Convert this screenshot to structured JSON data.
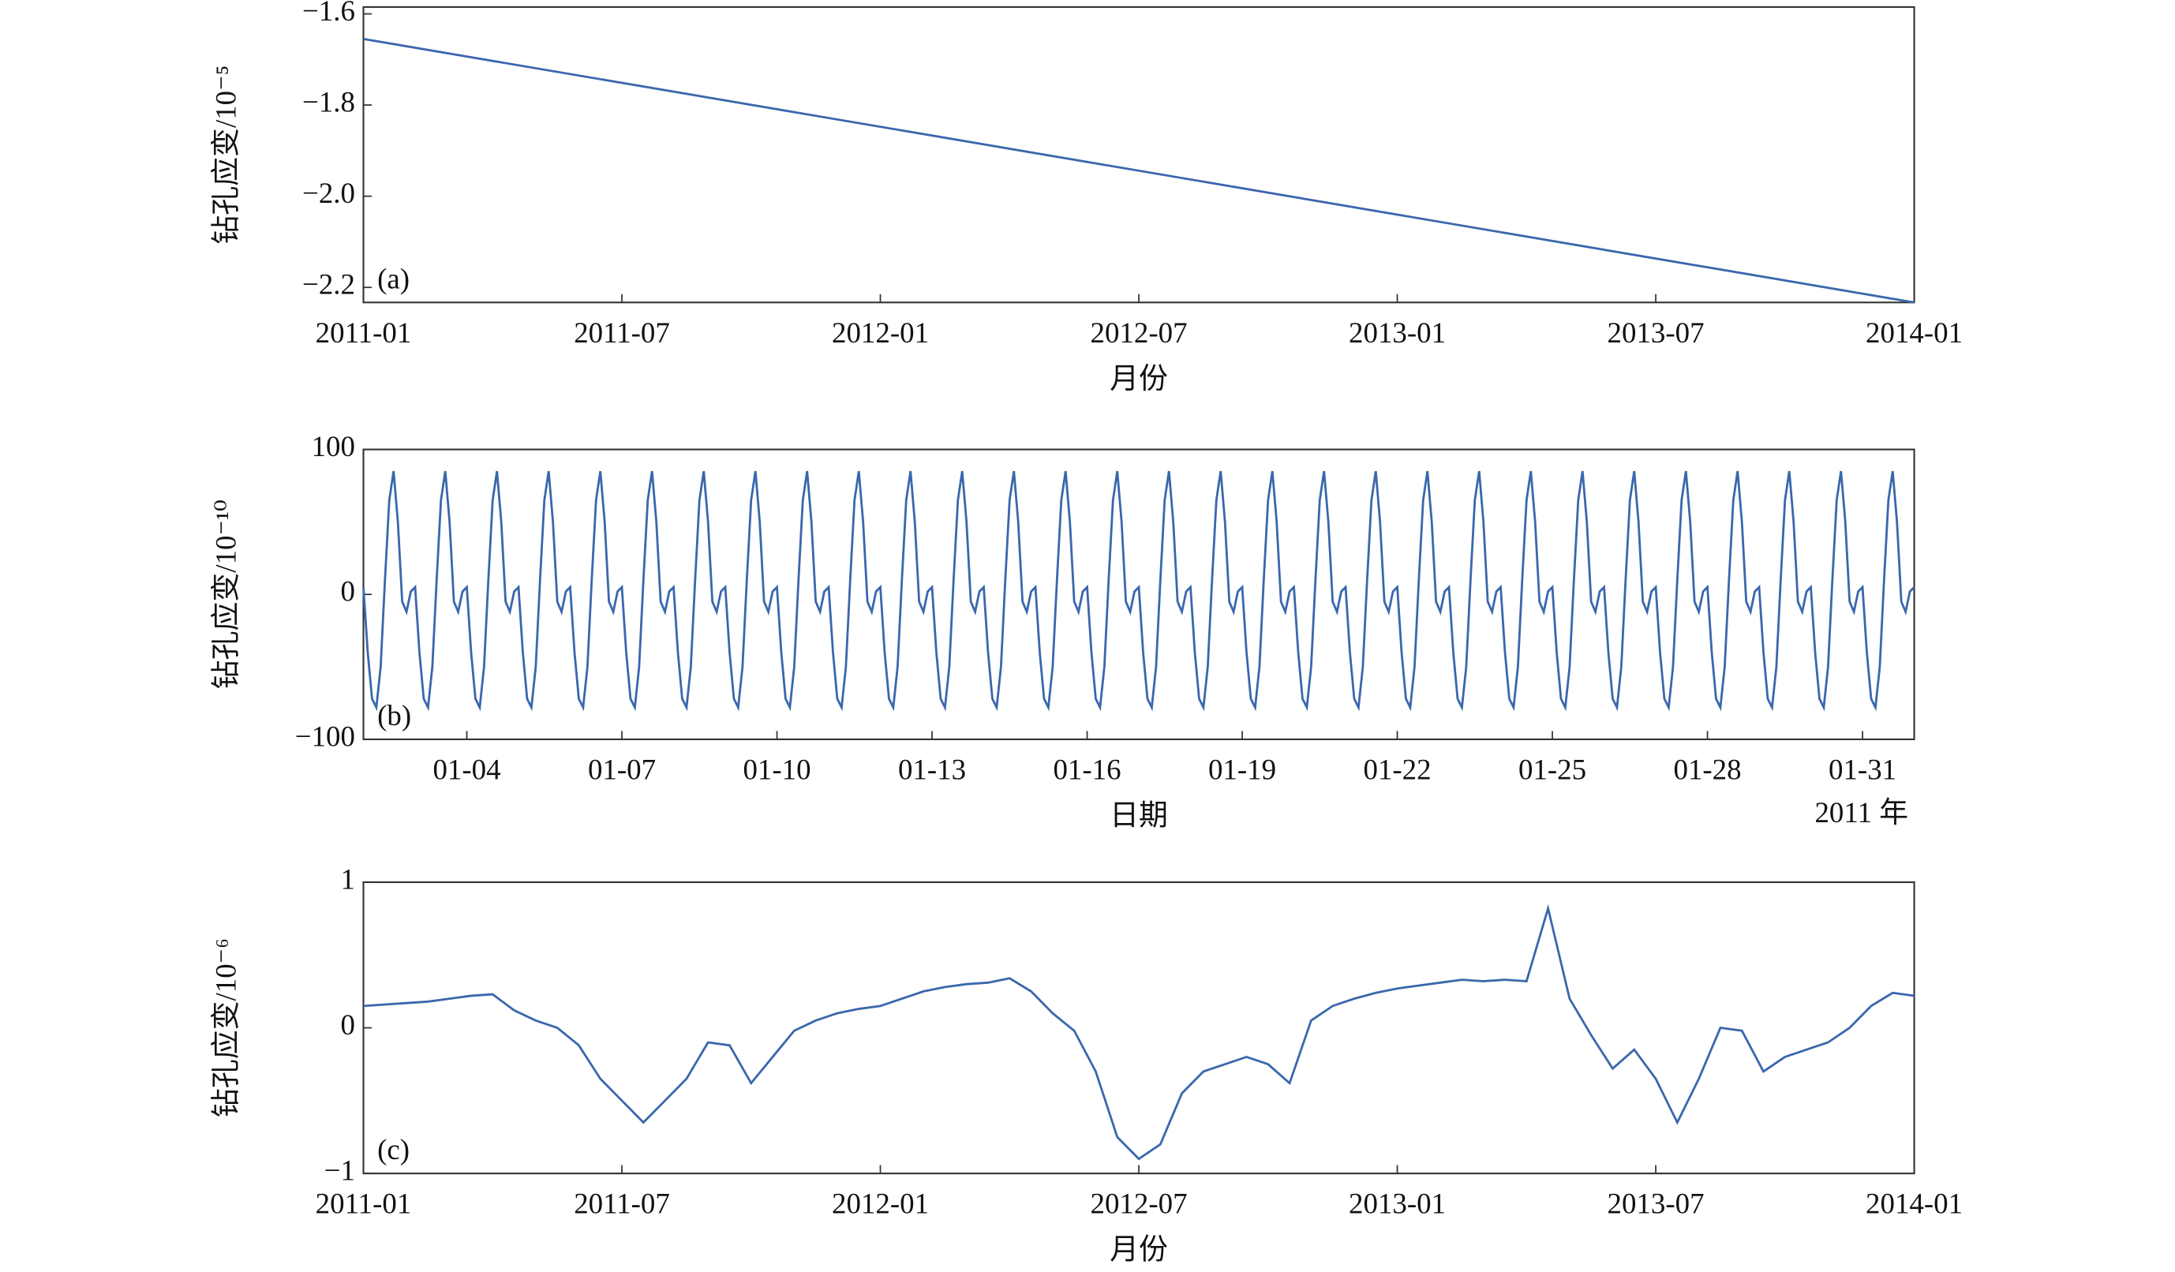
{
  "chart_data": [
    {
      "type": "line",
      "panel": "(a)",
      "xlabel": "月份",
      "ylabel": "钻孔应变/10⁻⁵",
      "x": [
        "2011-01",
        "2014-01"
      ],
      "series": [
        {
          "name": "a",
          "color": "#3a67ad",
          "values": [
            -1.655,
            -2.233
          ]
        }
      ],
      "xlim": [
        "2011-01",
        "2014-01"
      ],
      "xticks": [
        "2011-01",
        "2011-07",
        "2012-01",
        "2012-07",
        "2013-01",
        "2013-07",
        "2014-01"
      ],
      "ylim": [
        -2.233,
        -1.585
      ],
      "yticks": [
        {
          "value": -2.2,
          "label": "−2.2"
        },
        {
          "value": -2.0,
          "label": "−2.0"
        },
        {
          "value": -1.8,
          "label": "−1.8"
        },
        {
          "value": -1.6,
          "label": "−1.6"
        }
      ]
    },
    {
      "type": "line",
      "panel": "(b)",
      "xlabel": "日期",
      "ylabel": "钻孔应变/10⁻¹⁰",
      "annotation": "2011 年",
      "series": [
        {
          "name": "b",
          "color": "#3a67ad",
          "values": [
            5,
            -40,
            -72,
            -78,
            -50,
            10,
            65,
            85,
            50,
            -5,
            -12,
            2,
            5,
            -40,
            -72,
            -78,
            -50,
            10,
            65,
            85,
            50,
            -5,
            -12,
            2,
            5,
            -40,
            -72,
            -78,
            -50,
            10,
            65,
            85,
            50,
            -5,
            -12,
            2,
            5,
            -40,
            -72,
            -78,
            -50,
            10,
            65,
            85,
            50,
            -5,
            -12,
            2,
            5,
            -40,
            -72,
            -78,
            -50,
            10,
            65,
            85,
            50,
            -5,
            -12,
            2,
            5,
            -40,
            -72,
            -78,
            -50,
            10,
            65,
            85,
            50,
            -5,
            -12,
            2,
            5,
            -40,
            -72,
            -78,
            -50,
            10,
            65,
            85,
            50,
            -5,
            -12,
            2,
            5,
            -40,
            -72,
            -78,
            -50,
            10,
            65,
            85,
            50,
            -5,
            -12,
            2,
            5,
            -40,
            -72,
            -78,
            -50,
            10,
            65,
            85,
            50,
            -5,
            -12,
            2,
            5,
            -40,
            -72,
            -78,
            -50,
            10,
            65,
            85,
            50,
            -5,
            -12,
            2,
            5,
            -40,
            -72,
            -78,
            -50,
            10,
            65,
            85,
            50,
            -5,
            -12,
            2,
            5,
            -40,
            -72,
            -78,
            -50,
            10,
            65,
            85,
            50,
            -5,
            -12,
            2,
            5,
            -40,
            -72,
            -78,
            -50,
            10,
            65,
            85,
            50,
            -5,
            -12,
            2,
            5,
            -40,
            -72,
            -78,
            -50,
            10,
            65,
            85,
            50,
            -5,
            -12,
            2,
            5,
            -40,
            -72,
            -78,
            -50,
            10,
            65,
            85,
            50,
            -5,
            -12,
            2,
            5,
            -40,
            -72,
            -78,
            -50,
            10,
            65,
            85,
            50,
            -5,
            -12,
            2,
            5,
            -40,
            -72,
            -78,
            -50,
            10,
            65,
            85,
            50,
            -5,
            -12,
            2,
            5,
            -40,
            -72,
            -78,
            -50,
            10,
            65,
            85,
            50,
            -5,
            -12,
            2,
            5,
            -40,
            -72,
            -78,
            -50,
            10,
            65,
            85,
            50,
            -5,
            -12,
            2,
            5,
            -40,
            -72,
            -78,
            -50,
            10,
            65,
            85,
            50,
            -5,
            -12,
            2,
            5,
            -40,
            -72,
            -78,
            -50,
            10,
            65,
            85,
            50,
            -5,
            -12,
            2,
            5,
            -40,
            -72,
            -78,
            -50,
            10,
            65,
            85,
            50,
            -5,
            -12,
            2,
            5,
            -40,
            -72,
            -78,
            -50,
            10,
            65,
            85,
            50,
            -5,
            -12,
            2,
            5,
            -40,
            -72,
            -78,
            -50,
            10,
            65,
            85,
            50,
            -5,
            -12,
            2,
            5,
            -40,
            -72,
            -78,
            -50,
            10,
            65,
            85,
            50,
            -5,
            -12,
            2,
            5,
            -40,
            -72,
            -78,
            -50,
            10,
            65,
            85,
            50,
            -5,
            -12,
            2,
            5,
            -40,
            -72,
            -78,
            -50,
            10,
            65,
            85,
            50,
            -5,
            -12,
            2,
            5,
            -40,
            -72,
            -78,
            -50,
            10,
            65,
            85,
            50,
            -5,
            -12,
            2,
            5,
            -40,
            -72,
            -78,
            -50,
            10,
            65,
            85,
            50,
            -5,
            -12,
            2,
            5,
            -40,
            -72,
            -78,
            -50,
            10,
            65,
            85,
            50,
            -5,
            -12,
            2,
            5
          ]
        }
      ],
      "xlim": [
        2,
        32
      ],
      "xticks": [
        {
          "value": 4,
          "label": "01-04"
        },
        {
          "value": 7,
          "label": "01-07"
        },
        {
          "value": 10,
          "label": "01-10"
        },
        {
          "value": 13,
          "label": "01-13"
        },
        {
          "value": 16,
          "label": "01-16"
        },
        {
          "value": 19,
          "label": "01-19"
        },
        {
          "value": 22,
          "label": "01-22"
        },
        {
          "value": 25,
          "label": "01-25"
        },
        {
          "value": 28,
          "label": "01-28"
        },
        {
          "value": 31,
          "label": "01-31"
        }
      ],
      "ylim": [
        -100,
        100
      ],
      "yticks": [
        {
          "value": -100,
          "label": "−100"
        },
        0,
        100
      ]
    },
    {
      "type": "line",
      "panel": "(c)",
      "xlabel": "月份",
      "ylabel": "钻孔应变/10⁻⁶",
      "series": [
        {
          "name": "c",
          "color": "#3a67ad",
          "values": [
            0.15,
            0.16,
            0.17,
            0.18,
            0.2,
            0.22,
            0.23,
            0.12,
            0.05,
            0.0,
            -0.12,
            -0.35,
            -0.5,
            -0.65,
            -0.5,
            -0.35,
            -0.1,
            -0.12,
            -0.38,
            -0.2,
            -0.02,
            0.05,
            0.1,
            0.13,
            0.15,
            0.2,
            0.25,
            0.28,
            0.3,
            0.31,
            0.34,
            0.25,
            0.1,
            -0.02,
            -0.3,
            -0.75,
            -0.9,
            -0.8,
            -0.45,
            -0.3,
            -0.25,
            -0.2,
            -0.25,
            -0.38,
            0.05,
            0.15,
            0.2,
            0.24,
            0.27,
            0.29,
            0.31,
            0.33,
            0.32,
            0.33,
            0.32,
            0.82,
            0.2,
            -0.05,
            -0.28,
            -0.15,
            -0.35,
            -0.65,
            -0.35,
            0.0,
            -0.02,
            -0.3,
            -0.2,
            -0.15,
            -0.1,
            0.0,
            0.15,
            0.24,
            0.22
          ]
        }
      ],
      "xlim": [
        "2011-01",
        "2014-01"
      ],
      "xticks": [
        "2011-01",
        "2011-07",
        "2012-01",
        "2012-07",
        "2013-01",
        "2013-07",
        "2014-01"
      ],
      "ylim": [
        -1,
        1
      ],
      "yticks": [
        {
          "value": -1,
          "label": "−1"
        },
        0,
        1
      ]
    }
  ]
}
